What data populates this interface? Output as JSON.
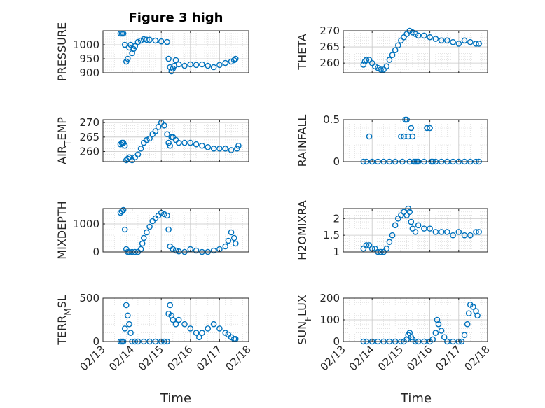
{
  "figure": {
    "title": "Figure 3 high",
    "x_axis_label": "Time",
    "x_tick_labels": [
      "02/13",
      "02/14",
      "02/15",
      "02/16",
      "02/17",
      "02/18"
    ],
    "marker_color": "#0072BD"
  },
  "chart_data": [
    {
      "type": "scatter",
      "ylabel": "PRESSURE",
      "title": "Figure 3 high",
      "xlabel": "",
      "xlim": [
        13,
        18
      ],
      "ylim": [
        900,
        1050
      ],
      "yticks": [
        900,
        950,
        1000
      ],
      "x": [
        13.6,
        13.65,
        13.7,
        13.75,
        13.8,
        13.85,
        13.9,
        13.95,
        14.0,
        14.05,
        14.1,
        14.2,
        14.3,
        14.4,
        14.5,
        14.6,
        14.8,
        15.0,
        15.2,
        15.25,
        15.3,
        15.35,
        15.4,
        15.45,
        15.5,
        15.6,
        15.8,
        16.0,
        16.2,
        16.4,
        16.6,
        16.8,
        17.0,
        17.2,
        17.4,
        17.5,
        17.55
      ],
      "y": [
        1040,
        1040,
        1040,
        1000,
        940,
        950,
        990,
        1000,
        970,
        985,
        995,
        1010,
        1015,
        1020,
        1018,
        1018,
        1015,
        1012,
        1010,
        950,
        920,
        905,
        915,
        925,
        945,
        930,
        925,
        930,
        928,
        930,
        925,
        920,
        928,
        935,
        940,
        945,
        950
      ]
    },
    {
      "type": "scatter",
      "ylabel": "THETA",
      "xlabel": "",
      "xlim": [
        13,
        18
      ],
      "ylim": [
        257,
        270
      ],
      "yticks": [
        260,
        265,
        270
      ],
      "x": [
        13.7,
        13.75,
        13.8,
        13.9,
        14.0,
        14.1,
        14.2,
        14.3,
        14.4,
        14.5,
        14.6,
        14.7,
        14.8,
        14.9,
        15.0,
        15.1,
        15.2,
        15.3,
        15.4,
        15.5,
        15.6,
        15.8,
        16.0,
        16.2,
        16.4,
        16.6,
        16.8,
        17.0,
        17.2,
        17.4,
        17.6,
        17.7
      ],
      "y": [
        259.5,
        260.5,
        261,
        261,
        260,
        259,
        258.5,
        258,
        258,
        259,
        261,
        262.5,
        264,
        265.5,
        267,
        268,
        269,
        270,
        269.5,
        269,
        268.5,
        268.5,
        268,
        267.5,
        267,
        267,
        266.5,
        266,
        267,
        266.5,
        266,
        266
      ]
    },
    {
      "type": "scatter",
      "ylabel": "AIR_TEMP",
      "xlabel": "",
      "xlim": [
        13,
        18
      ],
      "ylim": [
        256.5,
        271
      ],
      "yticks": [
        260,
        265,
        270
      ],
      "x": [
        13.6,
        13.65,
        13.7,
        13.75,
        13.8,
        13.85,
        13.9,
        14.0,
        14.1,
        14.2,
        14.3,
        14.4,
        14.5,
        14.6,
        14.7,
        14.8,
        14.9,
        15.0,
        15.1,
        15.2,
        15.25,
        15.3,
        15.35,
        15.4,
        15.5,
        15.6,
        15.8,
        16.0,
        16.2,
        16.4,
        16.6,
        16.8,
        17.0,
        17.2,
        17.4,
        17.6,
        17.65
      ],
      "y": [
        262.5,
        263,
        263,
        262,
        257,
        257.5,
        258,
        257,
        258,
        259,
        261,
        263,
        264,
        264.5,
        266,
        267,
        268.5,
        270,
        269,
        266,
        263,
        262,
        265,
        265,
        264,
        263,
        263,
        263,
        262.5,
        262,
        261.5,
        261,
        261,
        261,
        260.5,
        261,
        262
      ]
    },
    {
      "type": "scatter",
      "ylabel": "RAINFALL",
      "xlabel": "",
      "xlim": [
        13,
        18
      ],
      "ylim": [
        0,
        0.5
      ],
      "yticks": [
        0,
        0.5
      ],
      "x": [
        13.7,
        13.8,
        13.9,
        14.0,
        14.2,
        14.4,
        14.6,
        14.8,
        15.0,
        15.05,
        15.1,
        15.15,
        15.2,
        15.25,
        15.3,
        15.35,
        15.4,
        15.45,
        15.5,
        15.55,
        15.6,
        15.8,
        15.9,
        16.0,
        16.05,
        16.1,
        16.2,
        16.4,
        16.6,
        16.8,
        17.0,
        17.2,
        17.4,
        17.6,
        17.7
      ],
      "y": [
        0,
        0,
        0.3,
        0,
        0,
        0,
        0,
        0,
        0.3,
        0,
        0.3,
        0.5,
        0.5,
        0.3,
        0,
        0.4,
        0.3,
        0,
        0,
        0,
        0,
        0,
        0.4,
        0.4,
        0,
        0,
        0,
        0,
        0,
        0,
        0,
        0,
        0,
        0,
        0
      ]
    },
    {
      "type": "scatter",
      "ylabel": "MIXDEPTH",
      "xlabel": "",
      "xlim": [
        13,
        18
      ],
      "ylim": [
        0,
        1550
      ],
      "yticks": [
        0,
        1000
      ],
      "x": [
        13.6,
        13.65,
        13.7,
        13.75,
        13.8,
        13.85,
        13.9,
        14.0,
        14.1,
        14.2,
        14.3,
        14.35,
        14.4,
        14.5,
        14.6,
        14.7,
        14.8,
        14.9,
        15.0,
        15.1,
        15.2,
        15.25,
        15.3,
        15.4,
        15.5,
        15.6,
        15.8,
        16.0,
        16.2,
        16.4,
        16.6,
        16.8,
        17.0,
        17.2,
        17.3,
        17.4,
        17.5,
        17.55
      ],
      "y": [
        1400,
        1450,
        1500,
        800,
        100,
        0,
        0,
        0,
        0,
        0,
        100,
        300,
        500,
        700,
        900,
        1100,
        1200,
        1300,
        1400,
        1350,
        1300,
        800,
        200,
        100,
        50,
        20,
        0,
        100,
        50,
        0,
        0,
        50,
        100,
        200,
        400,
        700,
        500,
        300
      ]
    },
    {
      "type": "scatter",
      "ylabel": "H2OMIXRA",
      "xlabel": "",
      "xlim": [
        13,
        18
      ],
      "ylim": [
        1,
        2.3
      ],
      "yticks": [
        1,
        1.5,
        2
      ],
      "x": [
        13.7,
        13.8,
        13.9,
        14.0,
        14.1,
        14.2,
        14.3,
        14.4,
        14.5,
        14.6,
        14.7,
        14.8,
        14.9,
        15.0,
        15.1,
        15.2,
        15.25,
        15.3,
        15.35,
        15.4,
        15.5,
        15.6,
        15.8,
        16.0,
        16.2,
        16.4,
        16.6,
        16.8,
        17.0,
        17.2,
        17.4,
        17.6,
        17.7
      ],
      "y": [
        1.1,
        1.2,
        1.2,
        1.1,
        1.1,
        1.0,
        1.0,
        1.0,
        1.1,
        1.3,
        1.5,
        1.8,
        2.0,
        2.1,
        2.2,
        2.1,
        2.3,
        2.2,
        1.9,
        1.7,
        1.6,
        1.8,
        1.7,
        1.7,
        1.6,
        1.6,
        1.6,
        1.5,
        1.6,
        1.5,
        1.5,
        1.6,
        1.6
      ]
    },
    {
      "type": "scatter",
      "ylabel": "TERR_MSL",
      "xlabel": "",
      "xlim": [
        13,
        18
      ],
      "ylim": [
        0,
        500
      ],
      "yticks": [
        0,
        500
      ],
      "x": [
        13.6,
        13.65,
        13.7,
        13.75,
        13.8,
        13.85,
        13.9,
        13.95,
        14.0,
        14.1,
        14.2,
        14.4,
        14.6,
        14.8,
        15.0,
        15.1,
        15.2,
        15.25,
        15.3,
        15.35,
        15.4,
        15.5,
        15.6,
        15.8,
        16.0,
        16.2,
        16.3,
        16.4,
        16.6,
        16.8,
        17.0,
        17.2,
        17.3,
        17.4,
        17.5,
        17.55
      ],
      "y": [
        0,
        0,
        0,
        150,
        420,
        300,
        200,
        100,
        0,
        0,
        0,
        0,
        0,
        0,
        0,
        0,
        0,
        320,
        420,
        300,
        250,
        200,
        250,
        200,
        150,
        100,
        50,
        100,
        150,
        200,
        150,
        100,
        80,
        50,
        30,
        30
      ]
    },
    {
      "type": "scatter",
      "ylabel": "SUN_FLUX",
      "xlabel": "",
      "xlim": [
        13,
        18
      ],
      "ylim": [
        0,
        200
      ],
      "yticks": [
        0,
        100,
        200
      ],
      "x": [
        13.7,
        13.8,
        14.0,
        14.2,
        14.4,
        14.6,
        14.8,
        15.0,
        15.1,
        15.2,
        15.25,
        15.3,
        15.35,
        15.4,
        15.5,
        15.6,
        15.8,
        16.0,
        16.1,
        16.2,
        16.25,
        16.3,
        16.4,
        16.5,
        16.6,
        16.8,
        17.0,
        17.1,
        17.2,
        17.3,
        17.35,
        17.4,
        17.5,
        17.6,
        17.65
      ],
      "y": [
        0,
        0,
        0,
        0,
        0,
        0,
        0,
        0,
        0,
        10,
        30,
        40,
        20,
        10,
        0,
        0,
        0,
        0,
        10,
        40,
        100,
        80,
        50,
        20,
        0,
        0,
        0,
        0,
        30,
        80,
        130,
        170,
        160,
        140,
        120
      ]
    }
  ]
}
